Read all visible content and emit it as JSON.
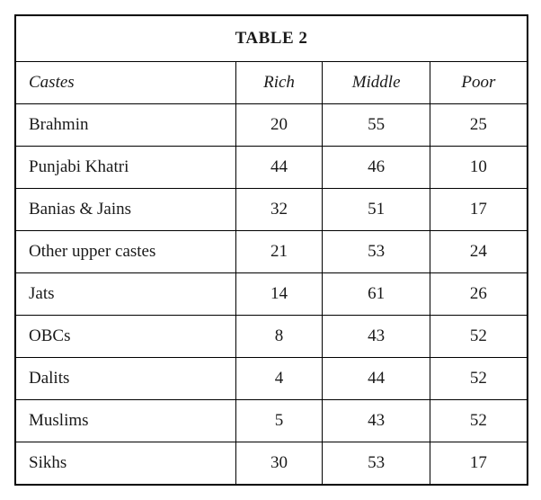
{
  "table": {
    "type": "table",
    "title": "TABLE 2",
    "columns": [
      "Castes",
      "Rich",
      "Middle",
      "Poor"
    ],
    "column_alignments": [
      "left",
      "center",
      "center",
      "center"
    ],
    "column_widths_pct": [
      43,
      17,
      21,
      19
    ],
    "header_font_style": "italic",
    "title_font_weight": "bold",
    "font_family": "Georgia, serif",
    "font_size_pt": 14,
    "border_color": "#000000",
    "background_color": "#ffffff",
    "text_color": "#1a1a1a",
    "rows": [
      {
        "label": "Brahmin",
        "values": [
          20,
          55,
          25
        ]
      },
      {
        "label": "Punjabi Khatri",
        "values": [
          44,
          46,
          10
        ]
      },
      {
        "label": "Banias & Jains",
        "values": [
          32,
          51,
          17
        ]
      },
      {
        "label": "Other upper castes",
        "values": [
          21,
          53,
          24
        ]
      },
      {
        "label": "Jats",
        "values": [
          14,
          61,
          26
        ]
      },
      {
        "label": "OBCs",
        "values": [
          8,
          43,
          52
        ]
      },
      {
        "label": "Dalits",
        "values": [
          4,
          44,
          52
        ]
      },
      {
        "label": "Muslims",
        "values": [
          5,
          43,
          52
        ]
      },
      {
        "label": "Sikhs",
        "values": [
          30,
          53,
          17
        ]
      }
    ]
  }
}
